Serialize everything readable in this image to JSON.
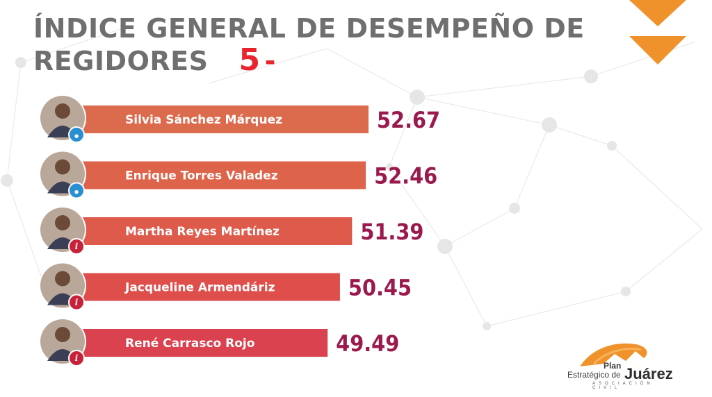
{
  "title": {
    "line1": "ÍNDICE GENERAL DE DESEMPEÑO DE",
    "line2": "REGIDORES",
    "number": "5",
    "dash": "-"
  },
  "chart_data": {
    "type": "bar",
    "categories": [
      "Silvia Sánchez Márquez",
      "Enrique Torres Valadez",
      "Martha Reyes Martínez",
      "Jacqueline Armendáriz",
      "René Carrasco Rojo"
    ],
    "values": [
      52.67,
      52.46,
      51.39,
      50.45,
      49.49
    ],
    "value_labels": [
      "52.67",
      "52.46",
      "51.39",
      "50.45",
      "49.49"
    ],
    "badges": [
      "pes",
      "pes",
      "ind",
      "ind",
      "ind"
    ],
    "bar_colors": [
      "#dc6a4c",
      "#dd644a",
      "#de5a4b",
      "#de4f4c",
      "#d9424e"
    ],
    "value_color": "#9b1a4e"
  },
  "logo": {
    "plan": "Plan",
    "estrategico": "Estratégico de",
    "juarez": "Juárez",
    "asociacion": "ASOCIACIÓN CIVIL"
  },
  "colors": {
    "title": "#6f6f6f",
    "accent": "#e8242d",
    "chevron": "#f0922b"
  }
}
